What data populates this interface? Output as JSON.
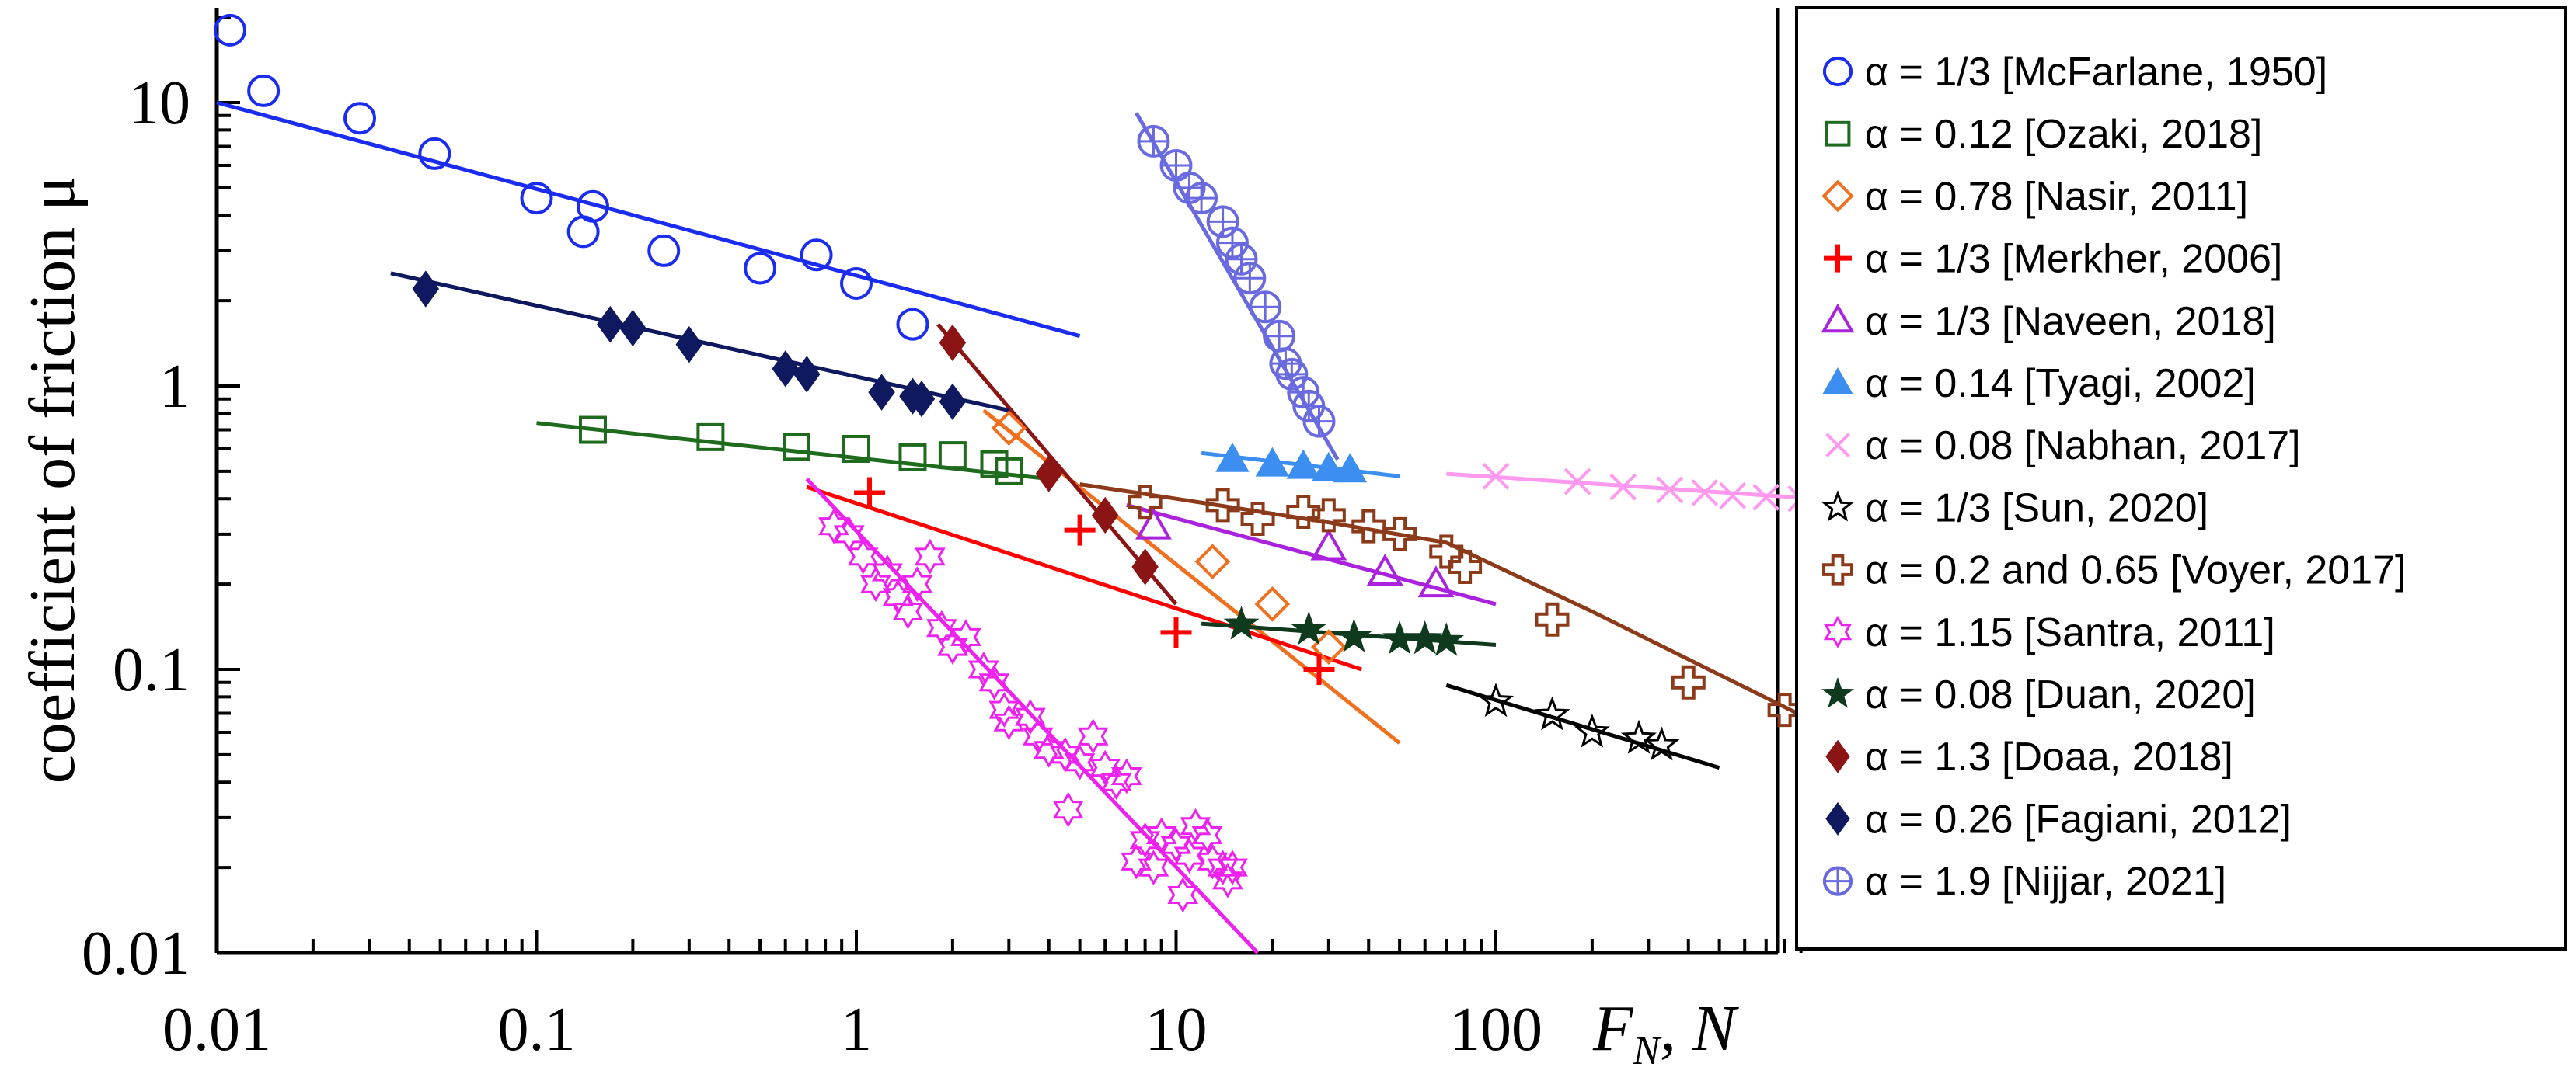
{
  "chart_data": {
    "type": "scatter",
    "x_scale": "log",
    "y_scale": "log",
    "xlim": [
      0.01,
      1000
    ],
    "ylim": [
      0.01,
      20
    ],
    "xlabel": {
      "main": "F",
      "sub": "N",
      "rest": ", N"
    },
    "ylabel": "coefficient of friction μ",
    "x_ticks": [
      {
        "value": 0.01,
        "label": "0.01"
      },
      {
        "value": 0.1,
        "label": "0.1"
      },
      {
        "value": 1,
        "label": "1"
      },
      {
        "value": 10,
        "label": "10"
      },
      {
        "value": 100,
        "label": "100"
      }
    ],
    "y_ticks": [
      {
        "value": 0.01,
        "label": "0.01"
      },
      {
        "value": 0.1,
        "label": "0.1"
      },
      {
        "value": 1,
        "label": "1"
      },
      {
        "value": 10,
        "label": "10"
      }
    ],
    "legend_position": "right",
    "series": [
      {
        "name": "α = 1/3 [McFarlane, 1950]",
        "marker": "circle-open",
        "color": "#1a2cf0",
        "points": [
          [
            0.011,
            18
          ],
          [
            0.014,
            11
          ],
          [
            0.028,
            8.8
          ],
          [
            0.048,
            6.6
          ],
          [
            0.1,
            4.6
          ],
          [
            0.14,
            3.5
          ],
          [
            0.15,
            4.3
          ],
          [
            0.25,
            3.0
          ],
          [
            0.5,
            2.6
          ],
          [
            0.75,
            2.9
          ],
          [
            1.0,
            2.3
          ],
          [
            1.5,
            1.65
          ]
        ],
        "fit": [
          [
            0.01,
            10
          ],
          [
            5,
            1.5
          ]
        ]
      },
      {
        "name": "α = 0.12 [Ozaki, 2018]",
        "marker": "square-open",
        "color": "#1e6b1e",
        "points": [
          [
            0.15,
            0.7
          ],
          [
            0.35,
            0.66
          ],
          [
            0.65,
            0.61
          ],
          [
            1.0,
            0.6
          ],
          [
            1.5,
            0.56
          ],
          [
            2.0,
            0.57
          ],
          [
            2.7,
            0.53
          ],
          [
            3.0,
            0.5
          ]
        ],
        "fit": [
          [
            0.1,
            0.74
          ],
          [
            4,
            0.47
          ]
        ]
      },
      {
        "name": "α = 0.78 [Nasir, 2011]",
        "marker": "diamond-open",
        "color": "#f07020",
        "points": [
          [
            3.0,
            0.71
          ],
          [
            13,
            0.24
          ],
          [
            20,
            0.17
          ],
          [
            30,
            0.12
          ]
        ],
        "fit": [
          [
            2.5,
            0.82
          ],
          [
            50,
            0.055
          ]
        ]
      },
      {
        "name": "α = 1/3 [Merkher, 2006]",
        "marker": "plus",
        "color": "#ff0000",
        "points": [
          [
            1.1,
            0.42
          ],
          [
            5.0,
            0.31
          ],
          [
            10,
            0.135
          ],
          [
            28,
            0.1
          ]
        ],
        "fit": [
          [
            0.7,
            0.44
          ],
          [
            38,
            0.1
          ]
        ]
      },
      {
        "name": "α = 1/3 [Naveen, 2018]",
        "marker": "triangle-open",
        "color": "#aa22dd",
        "points": [
          [
            8.5,
            0.32
          ],
          [
            30,
            0.27
          ],
          [
            45,
            0.22
          ],
          [
            65,
            0.2
          ]
        ],
        "fit": [
          [
            7,
            0.38
          ],
          [
            100,
            0.17
          ]
        ]
      },
      {
        "name": "α = 0.14 [Tyagi, 2002]",
        "marker": "triangle-filled",
        "color": "#3c8ff0",
        "points": [
          [
            15,
            0.55
          ],
          [
            20,
            0.53
          ],
          [
            25,
            0.52
          ],
          [
            30,
            0.51
          ],
          [
            35,
            0.505
          ]
        ],
        "fit": [
          [
            12,
            0.58
          ],
          [
            50,
            0.48
          ]
        ]
      },
      {
        "name": "α = 0.08 [Nabhan, 2017]",
        "marker": "x",
        "color": "#ff99ee",
        "points": [
          [
            100,
            0.48
          ],
          [
            180,
            0.46
          ],
          [
            250,
            0.44
          ],
          [
            350,
            0.43
          ],
          [
            450,
            0.42
          ],
          [
            550,
            0.41
          ],
          [
            700,
            0.405
          ],
          [
            900,
            0.4
          ]
        ],
        "fit": [
          [
            70,
            0.49
          ],
          [
            1000,
            0.4
          ]
        ]
      },
      {
        "name": "α = 1/3 [Sun, 2020]",
        "marker": "star-open",
        "color": "#000000",
        "points": [
          [
            100,
            0.077
          ],
          [
            150,
            0.069
          ],
          [
            200,
            0.06
          ],
          [
            280,
            0.057
          ],
          [
            330,
            0.054
          ]
        ],
        "fit": [
          [
            70,
            0.088
          ],
          [
            500,
            0.045
          ]
        ]
      },
      {
        "name": "α = 0.2 and 0.65 [Voyer, 2017]",
        "marker": "cross-open",
        "color": "#8b3a1a",
        "points": [
          [
            8,
            0.39
          ],
          [
            14,
            0.38
          ],
          [
            18,
            0.34
          ],
          [
            25,
            0.36
          ],
          [
            30,
            0.35
          ],
          [
            40,
            0.32
          ],
          [
            50,
            0.3
          ],
          [
            70,
            0.26
          ],
          [
            80,
            0.23
          ],
          [
            150,
            0.15
          ],
          [
            400,
            0.09
          ],
          [
            800,
            0.072
          ]
        ],
        "fit": [
          [
            5,
            0.45
          ],
          [
            10,
            0.4
          ],
          [
            30,
            0.33
          ],
          [
            70,
            0.28
          ],
          [
            200,
            0.16
          ],
          [
            1000,
            0.065
          ]
        ]
      },
      {
        "name": "α = 1.15 [Santra, 2011]",
        "marker": "hexagram-open",
        "color": "#ee22ee",
        "points": [
          [
            0.85,
            0.32
          ],
          [
            0.95,
            0.3
          ],
          [
            1.05,
            0.25
          ],
          [
            1.15,
            0.2
          ],
          [
            1.25,
            0.22
          ],
          [
            1.35,
            0.18
          ],
          [
            1.45,
            0.16
          ],
          [
            1.55,
            0.2
          ],
          [
            1.7,
            0.25
          ],
          [
            1.85,
            0.14
          ],
          [
            2.0,
            0.12
          ],
          [
            2.2,
            0.13
          ],
          [
            2.5,
            0.1
          ],
          [
            2.7,
            0.09
          ],
          [
            2.9,
            0.072
          ],
          [
            3.0,
            0.065
          ],
          [
            3.5,
            0.068
          ],
          [
            3.7,
            0.058
          ],
          [
            4.0,
            0.052
          ],
          [
            4.5,
            0.05
          ],
          [
            4.6,
            0.032
          ],
          [
            5.0,
            0.047
          ],
          [
            5.5,
            0.058
          ],
          [
            6.0,
            0.045
          ],
          [
            6.5,
            0.04
          ],
          [
            7.0,
            0.042
          ],
          [
            7.5,
            0.021
          ],
          [
            8.0,
            0.025
          ],
          [
            8.5,
            0.02
          ],
          [
            9.0,
            0.026
          ],
          [
            10,
            0.024
          ],
          [
            10.5,
            0.016
          ],
          [
            11,
            0.022
          ],
          [
            11.5,
            0.028
          ],
          [
            12.5,
            0.026
          ],
          [
            13,
            0.021
          ],
          [
            14,
            0.02
          ],
          [
            14.5,
            0.018
          ],
          [
            15,
            0.02
          ]
        ],
        "fit": [
          [
            0.7,
            0.47
          ],
          [
            18,
            0.01
          ]
        ]
      },
      {
        "name": "α = 0.08 [Duan, 2020]",
        "marker": "star-filled",
        "color": "#0f3a1e",
        "points": [
          [
            16,
            0.144
          ],
          [
            26,
            0.138
          ],
          [
            36,
            0.13
          ],
          [
            50,
            0.128
          ],
          [
            60,
            0.128
          ],
          [
            70,
            0.126
          ]
        ],
        "fit": [
          [
            12,
            0.145
          ],
          [
            100,
            0.122
          ]
        ]
      },
      {
        "name": "α = 1.3 [Doaa, 2018]",
        "marker": "diamond-filled",
        "color": "#8b1515",
        "points": [
          [
            2.0,
            1.42
          ],
          [
            4.0,
            0.49
          ],
          [
            6.0,
            0.35
          ],
          [
            8.0,
            0.23
          ]
        ],
        "fit": [
          [
            1.8,
            1.65
          ],
          [
            10,
            0.17
          ]
        ]
      },
      {
        "name": "α = 0.26 [Fagiani, 2012]",
        "marker": "diamond-filled",
        "color": "#0f1960",
        "points": [
          [
            0.045,
            2.2
          ],
          [
            0.17,
            1.65
          ],
          [
            0.2,
            1.6
          ],
          [
            0.3,
            1.4
          ],
          [
            0.6,
            1.15
          ],
          [
            0.7,
            1.1
          ],
          [
            1.2,
            0.95
          ],
          [
            1.5,
            0.92
          ],
          [
            1.6,
            0.9
          ],
          [
            2.0,
            0.88
          ]
        ],
        "fit": [
          [
            0.035,
            2.5
          ],
          [
            3,
            0.82
          ]
        ]
      },
      {
        "name": "α = 1.9 [Nijjar, 2021]",
        "marker": "circle-plus",
        "color": "#6a6ae0",
        "points": [
          [
            8.5,
            7.3
          ],
          [
            10,
            6
          ],
          [
            11,
            5
          ],
          [
            12,
            4.6
          ],
          [
            14,
            3.8
          ],
          [
            15,
            3.2
          ],
          [
            16,
            2.8
          ],
          [
            17,
            2.4
          ],
          [
            19,
            1.9
          ],
          [
            21,
            1.5
          ],
          [
            22,
            1.2
          ],
          [
            23,
            1.1
          ],
          [
            25,
            0.95
          ],
          [
            26,
            0.85
          ],
          [
            28,
            0.75
          ]
        ],
        "fit": [
          [
            7.5,
            9.2
          ],
          [
            32,
            0.55
          ]
        ]
      }
    ]
  }
}
